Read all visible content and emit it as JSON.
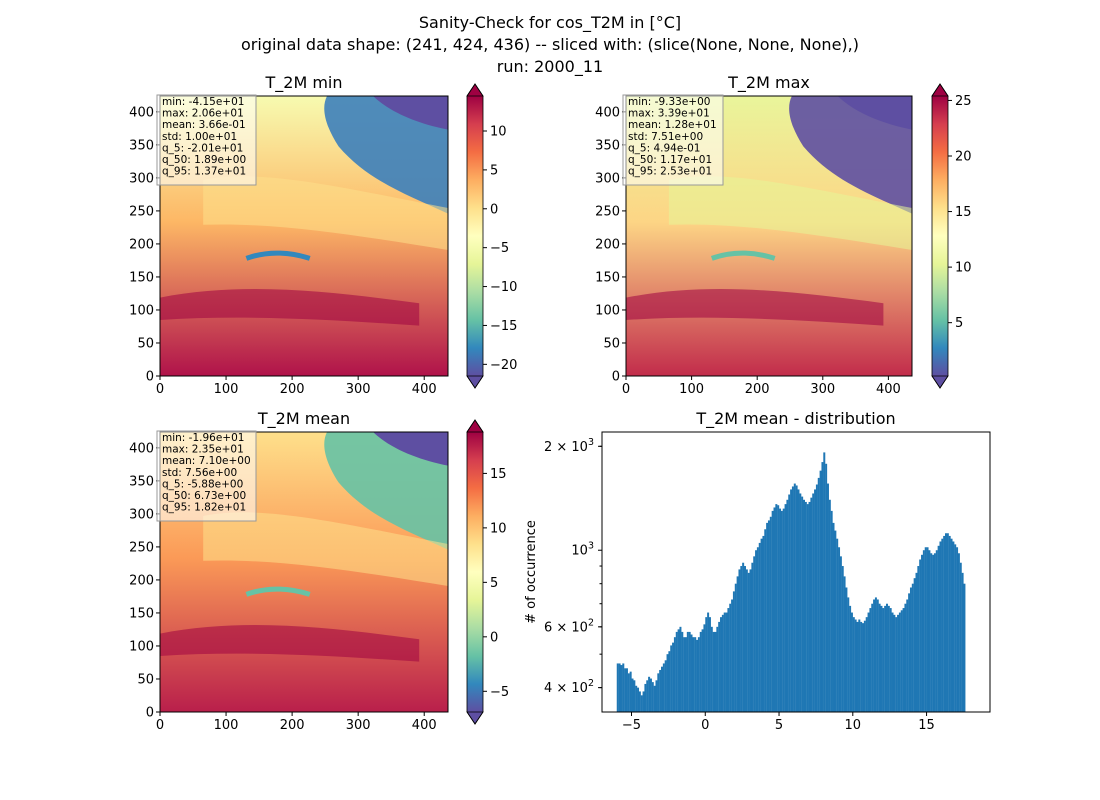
{
  "figure": {
    "title_lines": [
      "Sanity-Check for cos_T2M in [°C]",
      "original data shape: (241, 424, 436) -- sliced with: (slice(None, None, None),)",
      "run: 2000_11"
    ]
  },
  "colormap": {
    "name": "Spectral_r",
    "stops": [
      "#5e4fa2",
      "#3288bd",
      "#66c2a5",
      "#abdda4",
      "#e6f598",
      "#ffffbf",
      "#fee08b",
      "#fdae61",
      "#f46d43",
      "#d53e4f",
      "#9e0142"
    ]
  },
  "histogram_color": "#1f77b4",
  "chart_data": [
    {
      "type": "heatmap",
      "title": "T_2M min",
      "x_ticks": [
        "0",
        "100",
        "200",
        "300",
        "400"
      ],
      "y_ticks": [
        "0",
        "50",
        "100",
        "150",
        "200",
        "250",
        "300",
        "350",
        "400"
      ],
      "xlim": [
        0,
        436
      ],
      "ylim": [
        0,
        424
      ],
      "colorbar": {
        "vmin": -21.5,
        "vmax": 14.5,
        "ticks": [
          -20,
          -15,
          -10,
          -5,
          0,
          5,
          10
        ],
        "tick_labels": [
          "−20",
          "−15",
          "−10",
          "−5",
          "0",
          "5",
          "10"
        ]
      },
      "stats": [
        "min: -4.15e+01",
        "max: 2.06e+01",
        "mean: 3.66e-01",
        "std: 1.00e+01",
        "q_5: -2.01e+01",
        "q_50: 1.89e+00",
        "q_95: 1.37e+01"
      ]
    },
    {
      "type": "heatmap",
      "title": "T_2M max",
      "x_ticks": [
        "0",
        "100",
        "200",
        "300",
        "400"
      ],
      "y_ticks": [
        "0",
        "50",
        "100",
        "150",
        "200",
        "250",
        "300",
        "350",
        "400"
      ],
      "xlim": [
        0,
        436
      ],
      "ylim": [
        0,
        424
      ],
      "colorbar": {
        "vmin": 0.2,
        "vmax": 25.4,
        "ticks": [
          5,
          10,
          15,
          20,
          25
        ],
        "tick_labels": [
          "5",
          "10",
          "15",
          "20",
          "25"
        ]
      },
      "stats": [
        "min: -9.33e+00",
        "max: 3.39e+01",
        "mean: 1.28e+01",
        "std: 7.51e+00",
        "q_5: 4.94e-01",
        "q_50: 1.17e+01",
        "q_95: 2.53e+01"
      ]
    },
    {
      "type": "heatmap",
      "title": "T_2M mean",
      "x_ticks": [
        "0",
        "100",
        "200",
        "300",
        "400"
      ],
      "y_ticks": [
        "0",
        "50",
        "100",
        "150",
        "200",
        "250",
        "300",
        "350",
        "400"
      ],
      "xlim": [
        0,
        436
      ],
      "ylim": [
        0,
        424
      ],
      "colorbar": {
        "vmin": -6.9,
        "vmax": 18.8,
        "ticks": [
          -5,
          0,
          5,
          10,
          15
        ],
        "tick_labels": [
          "−5",
          "0",
          "5",
          "10",
          "15"
        ]
      },
      "stats": [
        "min: -1.96e+01",
        "max: 2.35e+01",
        "mean: 7.10e+00",
        "std: 7.56e+00",
        "q_5: -5.88e+00",
        "q_50: 6.73e+00",
        "q_95: 1.82e+01"
      ]
    },
    {
      "type": "bar",
      "title": "T_2M mean - distribution",
      "ylabel": "# of occurrence",
      "y_scale": "log",
      "xlim": [
        -7.0,
        19.3
      ],
      "ylim": [
        340,
        2200
      ],
      "x_ticks": [
        -5,
        0,
        5,
        10,
        15
      ],
      "x_tick_labels": [
        "−5",
        "0",
        "5",
        "10",
        "15"
      ],
      "y_ticks": [
        400,
        600,
        1000,
        2000
      ],
      "y_tick_labels": [
        [
          "4",
          "× 10",
          "2"
        ],
        [
          "6",
          "× 10",
          "2"
        ],
        [
          "",
          "10",
          "3"
        ],
        [
          "2",
          "× 10",
          "3"
        ]
      ],
      "bin_start": -6.0,
      "bin_width": 0.125,
      "counts": [
        470,
        470,
        465,
        470,
        455,
        455,
        440,
        445,
        425,
        420,
        405,
        400,
        390,
        380,
        390,
        410,
        420,
        430,
        425,
        415,
        405,
        420,
        440,
        450,
        460,
        470,
        480,
        500,
        510,
        530,
        540,
        560,
        580,
        590,
        600,
        580,
        560,
        560,
        580,
        580,
        570,
        560,
        560,
        550,
        560,
        580,
        590,
        610,
        640,
        660,
        640,
        600,
        580,
        580,
        600,
        620,
        640,
        650,
        660,
        660,
        680,
        700,
        720,
        760,
        800,
        840,
        880,
        900,
        920,
        900,
        880,
        860,
        880,
        920,
        960,
        1000,
        1020,
        1050,
        1080,
        1100,
        1150,
        1200,
        1220,
        1250,
        1300,
        1330,
        1360,
        1350,
        1320,
        1300,
        1320,
        1360,
        1400,
        1450,
        1500,
        1530,
        1560,
        1540,
        1500,
        1460,
        1430,
        1400,
        1380,
        1360,
        1380,
        1420,
        1460,
        1500,
        1550,
        1620,
        1700,
        1800,
        1920,
        1780,
        1560,
        1400,
        1300,
        1200,
        1140,
        1080,
        1020,
        960,
        900,
        840,
        780,
        730,
        690,
        660,
        640,
        630,
        620,
        630,
        620,
        615,
        625,
        640,
        660,
        680,
        700,
        720,
        730,
        720,
        700,
        690,
        680,
        690,
        700,
        690,
        680,
        660,
        650,
        640,
        650,
        660,
        670,
        680,
        700,
        720,
        750,
        780,
        800,
        830,
        860,
        900,
        940,
        970,
        1000,
        1020,
        1020,
        1000,
        980,
        970,
        980,
        1000,
        1030,
        1060,
        1080,
        1100,
        1120,
        1120,
        1100,
        1080,
        1060,
        1040,
        1020,
        980,
        920,
        860,
        800
      ]
    }
  ]
}
